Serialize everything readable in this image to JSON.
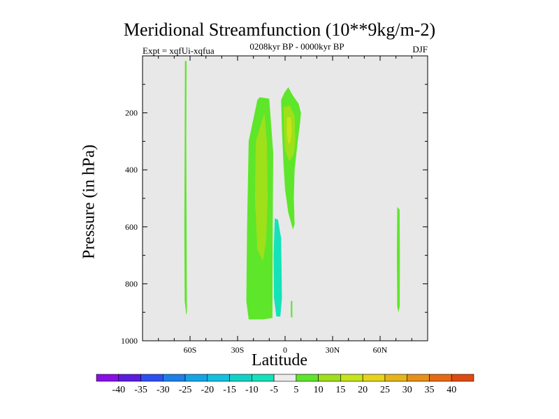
{
  "chart_data": {
    "type": "contour",
    "title": "Meridional Streamfunction (10**9kg/m-2)",
    "subtitle_left": "Expt = xqfUi-xqfua",
    "subtitle_center": "0208kyr BP - 0000kyr BP",
    "subtitle_right": "DJF",
    "xlabel": "Latitude",
    "ylabel": "Pressure (in hPa)",
    "xlim": [
      -90,
      90
    ],
    "ylim": [
      1000,
      0
    ],
    "x_ticks": [
      {
        "value": -60,
        "label": "60S"
      },
      {
        "value": -30,
        "label": "30S"
      },
      {
        "value": 0,
        "label": "0"
      },
      {
        "value": 30,
        "label": "30N"
      },
      {
        "value": 60,
        "label": "60N"
      }
    ],
    "y_ticks": [
      {
        "value": 200,
        "label": "200"
      },
      {
        "value": 400,
        "label": "400"
      },
      {
        "value": 600,
        "label": "600"
      },
      {
        "value": 800,
        "label": "800"
      },
      {
        "value": 1000,
        "label": "1000"
      }
    ],
    "background_color": "#e8e8e8",
    "colorbar": {
      "labels": [
        "-40",
        "-35",
        "-30",
        "-25",
        "-20",
        "-15",
        "-10",
        "-5",
        "5",
        "10",
        "15",
        "20",
        "25",
        "30",
        "35",
        "40"
      ],
      "colors": [
        "#8a0fe6",
        "#5c1ce0",
        "#2e4ff0",
        "#1e7fe8",
        "#14a5e6",
        "#12c0e0",
        "#12d2c8",
        "#15e2b8",
        "#ececec",
        "#5ee62a",
        "#9ee01a",
        "#c6e51a",
        "#e6d41a",
        "#e6b41a",
        "#e6901a",
        "#e66a16",
        "#e04a10"
      ]
    },
    "regions": [
      {
        "name": "60S thin positive band",
        "level": 5,
        "color": "#5ee62a",
        "points": [
          [
            -63.2,
            18
          ],
          [
            -62.2,
            18
          ],
          [
            -62.4,
            300
          ],
          [
            -62.2,
            600
          ],
          [
            -62.0,
            900
          ],
          [
            -62.4,
            910
          ],
          [
            -63.4,
            860
          ],
          [
            -63.6,
            600
          ],
          [
            -63.4,
            300
          ]
        ]
      },
      {
        "name": "SH subtropical cell outer",
        "level": 5,
        "color": "#5ee62a",
        "points": [
          [
            -16,
            145
          ],
          [
            -10,
            150
          ],
          [
            -7.5,
            340
          ],
          [
            -7.8,
            600
          ],
          [
            -8,
            920
          ],
          [
            -14,
            925
          ],
          [
            -23,
            925
          ],
          [
            -24.5,
            860
          ],
          [
            -24,
            600
          ],
          [
            -23,
            300
          ],
          [
            -17.5,
            155
          ]
        ]
      },
      {
        "name": "SH subtropical cell core",
        "level": 10,
        "color": "#9ee01a",
        "points": [
          [
            -13,
            200
          ],
          [
            -11.5,
            300
          ],
          [
            -11,
            500
          ],
          [
            -12,
            650
          ],
          [
            -14,
            720
          ],
          [
            -17.5,
            680
          ],
          [
            -19,
            500
          ],
          [
            -18.5,
            300
          ]
        ]
      },
      {
        "name": "NH/equatorial cell outer",
        "level": 5,
        "color": "#5ee62a",
        "points": [
          [
            -2.5,
            155
          ],
          [
            -0.5,
            130
          ],
          [
            2,
            110
          ],
          [
            5,
            140
          ],
          [
            8.5,
            168
          ],
          [
            10,
            200
          ],
          [
            9.5,
            235
          ],
          [
            8,
            300
          ],
          [
            6,
            400
          ],
          [
            5.5,
            500
          ],
          [
            6,
            590
          ],
          [
            5,
            610
          ],
          [
            2,
            550
          ],
          [
            0,
            470
          ],
          [
            -1,
            380
          ],
          [
            -2,
            260
          ]
        ]
      },
      {
        "name": "NH/equatorial cell middle",
        "level": 10,
        "color": "#9ee01a",
        "points": [
          [
            -1,
            180
          ],
          [
            3,
            175
          ],
          [
            6,
            210
          ],
          [
            6.5,
            300
          ],
          [
            5.5,
            345
          ],
          [
            2.5,
            370
          ],
          [
            0,
            330
          ],
          [
            -0.8,
            250
          ]
        ]
      },
      {
        "name": "NH/equatorial cell core",
        "level": 15,
        "color": "#c6e51a",
        "points": [
          [
            1.2,
            215
          ],
          [
            3.6,
            215
          ],
          [
            4.2,
            260
          ],
          [
            3.6,
            300
          ],
          [
            2,
            310
          ],
          [
            1,
            270
          ]
        ]
      },
      {
        "name": "SH negative cell",
        "level": -5,
        "color": "#15e2b8",
        "points": [
          [
            -6.5,
            570
          ],
          [
            -4.5,
            575
          ],
          [
            -2.5,
            640
          ],
          [
            -2,
            850
          ],
          [
            -3,
            915
          ],
          [
            -5.5,
            915
          ],
          [
            -7,
            850
          ],
          [
            -7.3,
            700
          ]
        ]
      },
      {
        "name": "equatorial small positive",
        "level": 5,
        "color": "#5ee62a",
        "points": [
          [
            3.6,
            860
          ],
          [
            4.6,
            860
          ],
          [
            4.6,
            920
          ],
          [
            3.6,
            915
          ]
        ]
      },
      {
        "name": "70N positive band",
        "level": 5,
        "color": "#5ee62a",
        "points": [
          [
            70.8,
            530
          ],
          [
            72.3,
            540
          ],
          [
            72.5,
            700
          ],
          [
            72.4,
            880
          ],
          [
            71.5,
            900
          ],
          [
            70.8,
            880
          ],
          [
            70.6,
            700
          ]
        ]
      }
    ]
  }
}
